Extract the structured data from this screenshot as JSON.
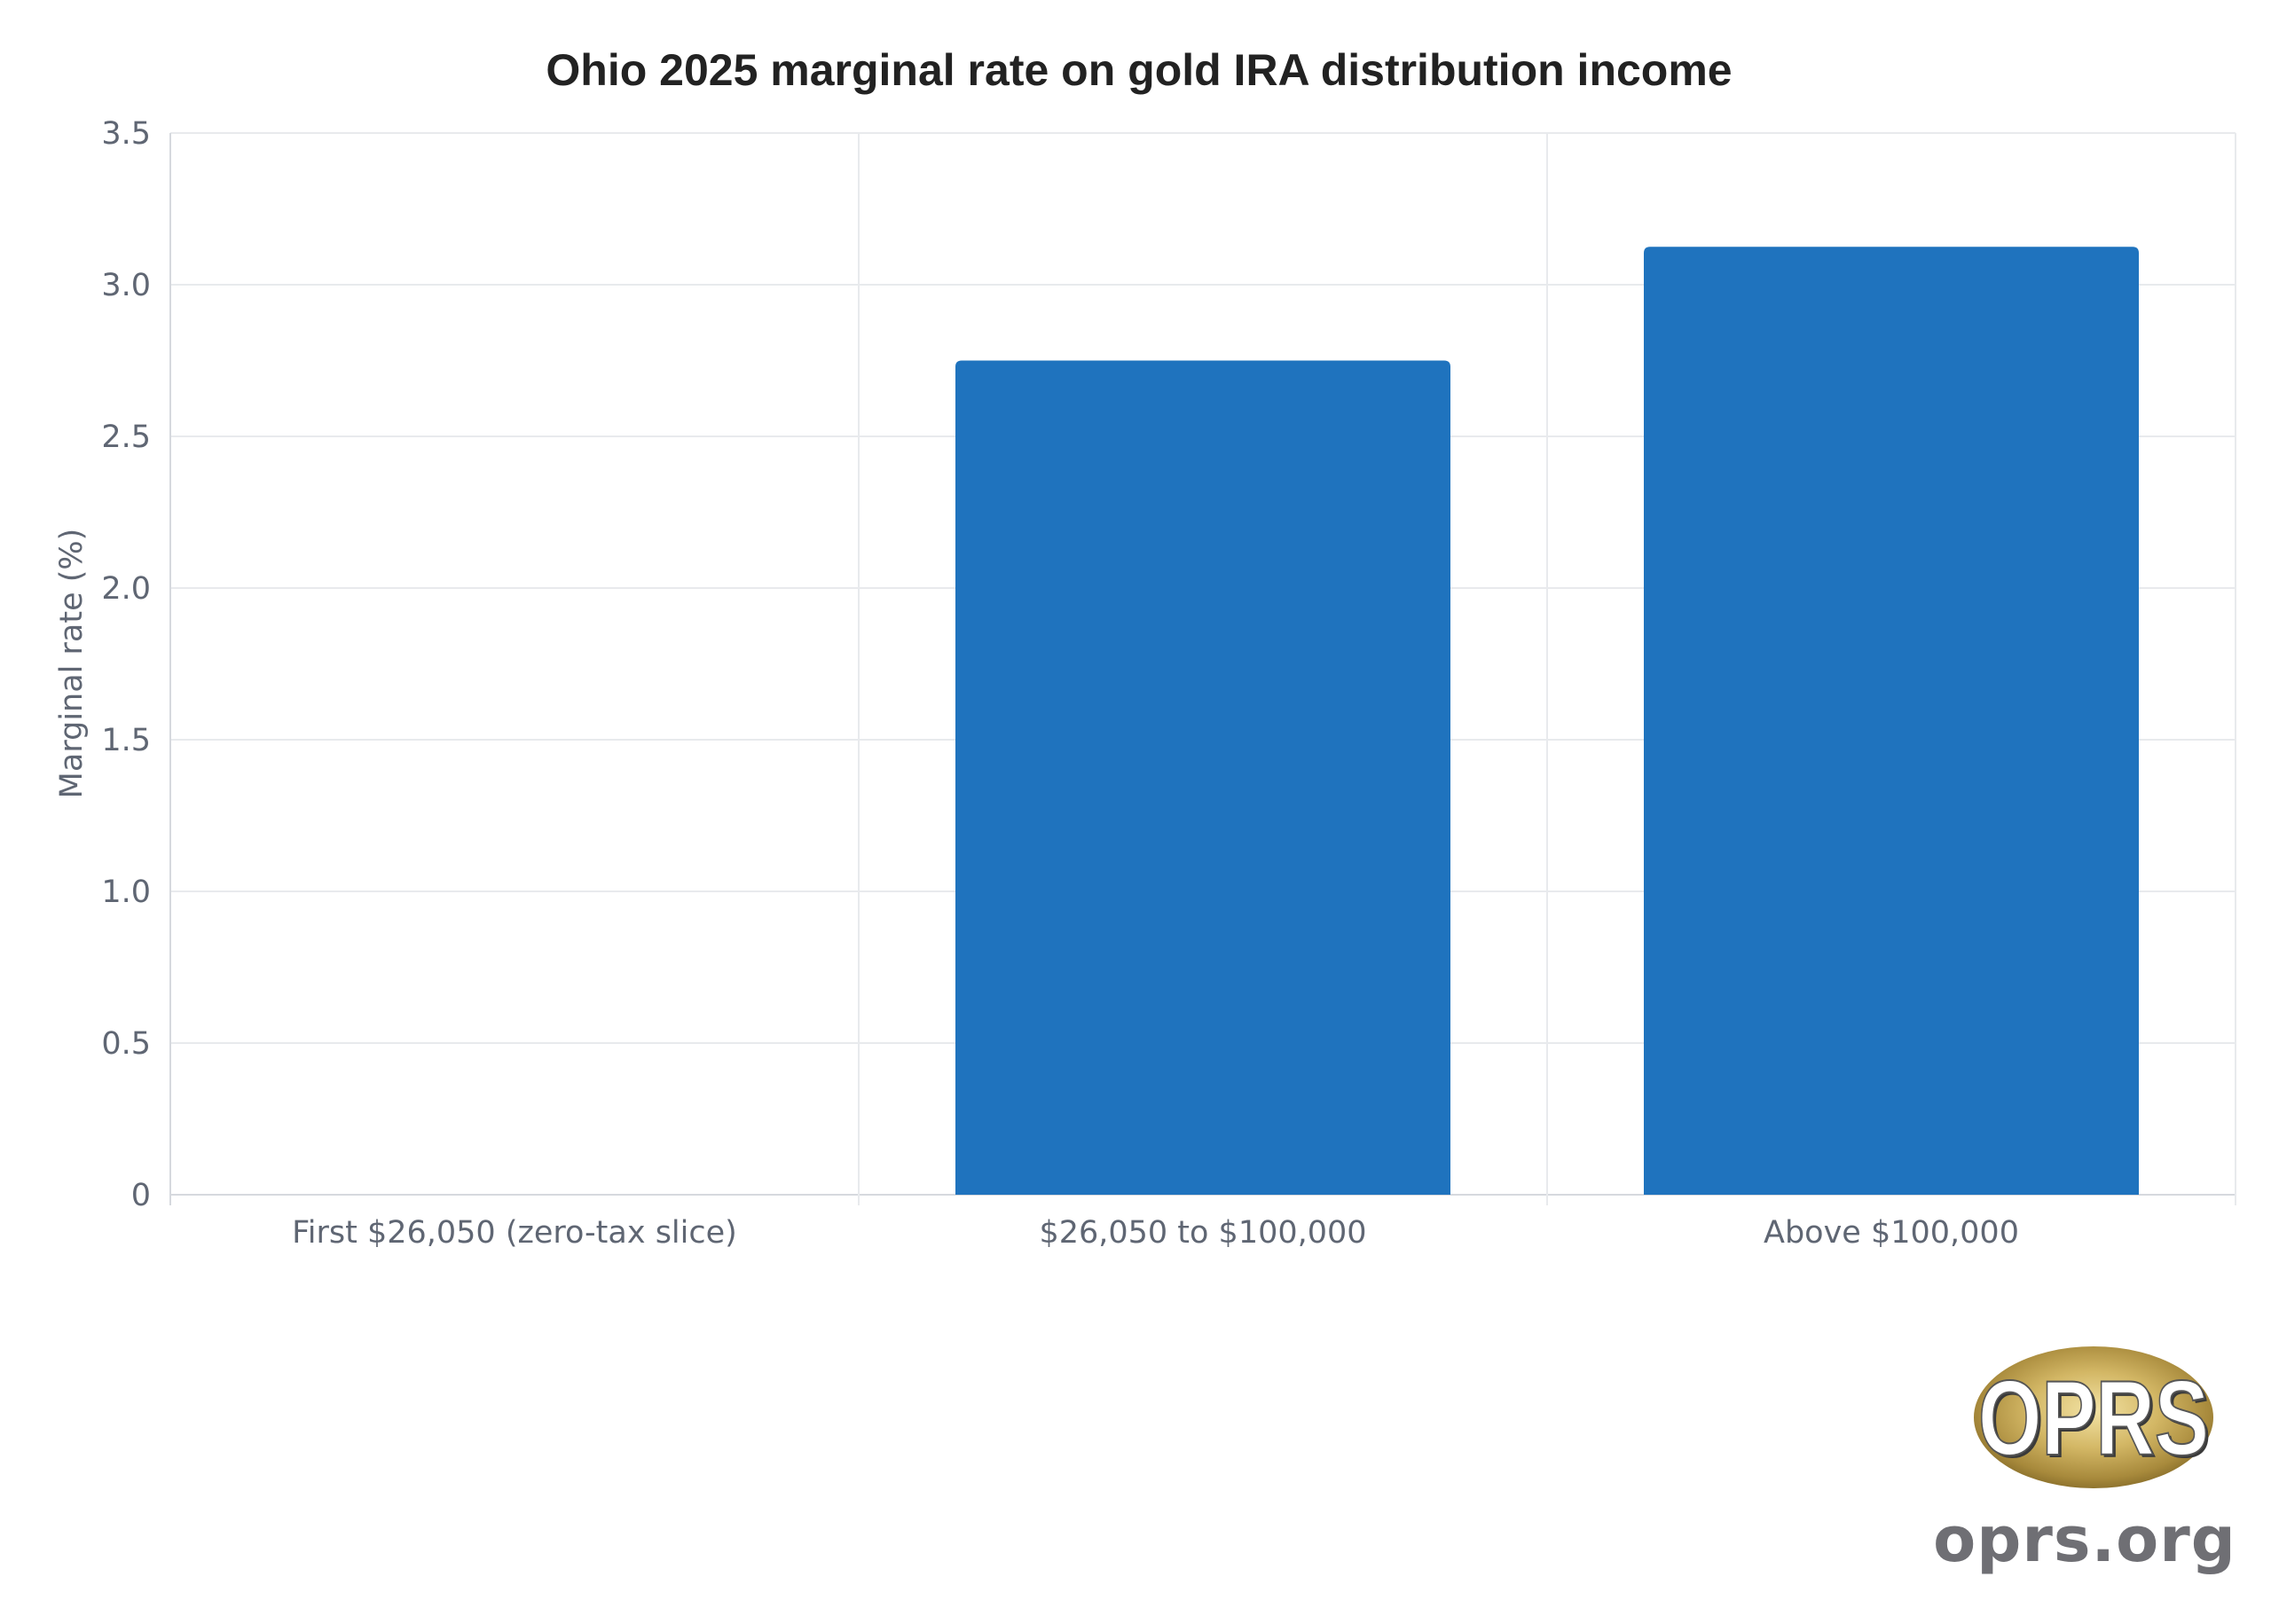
{
  "chart_data": {
    "type": "bar",
    "title": "Ohio 2025 marginal rate on gold IRA distribution income",
    "xlabel": "",
    "ylabel": "Marginal rate (%)",
    "categories": [
      "First $26,050 (zero-tax slice)",
      "$26,050 to $100,000",
      "Above $100,000"
    ],
    "values": [
      0,
      2.75,
      3.125
    ],
    "ylim": [
      0,
      3.5
    ],
    "yticks": [
      0,
      0.5,
      1.0,
      1.5,
      2.0,
      2.5,
      3.0,
      3.5
    ],
    "ytick_labels": [
      "0",
      "0.5",
      "1.0",
      "1.5",
      "2.0",
      "2.5",
      "3.0",
      "3.5"
    ],
    "grid": true,
    "legend": "none",
    "bar_color": "#1f73be"
  },
  "branding": {
    "logo_text": "OPRS",
    "url": "oprs.org"
  }
}
